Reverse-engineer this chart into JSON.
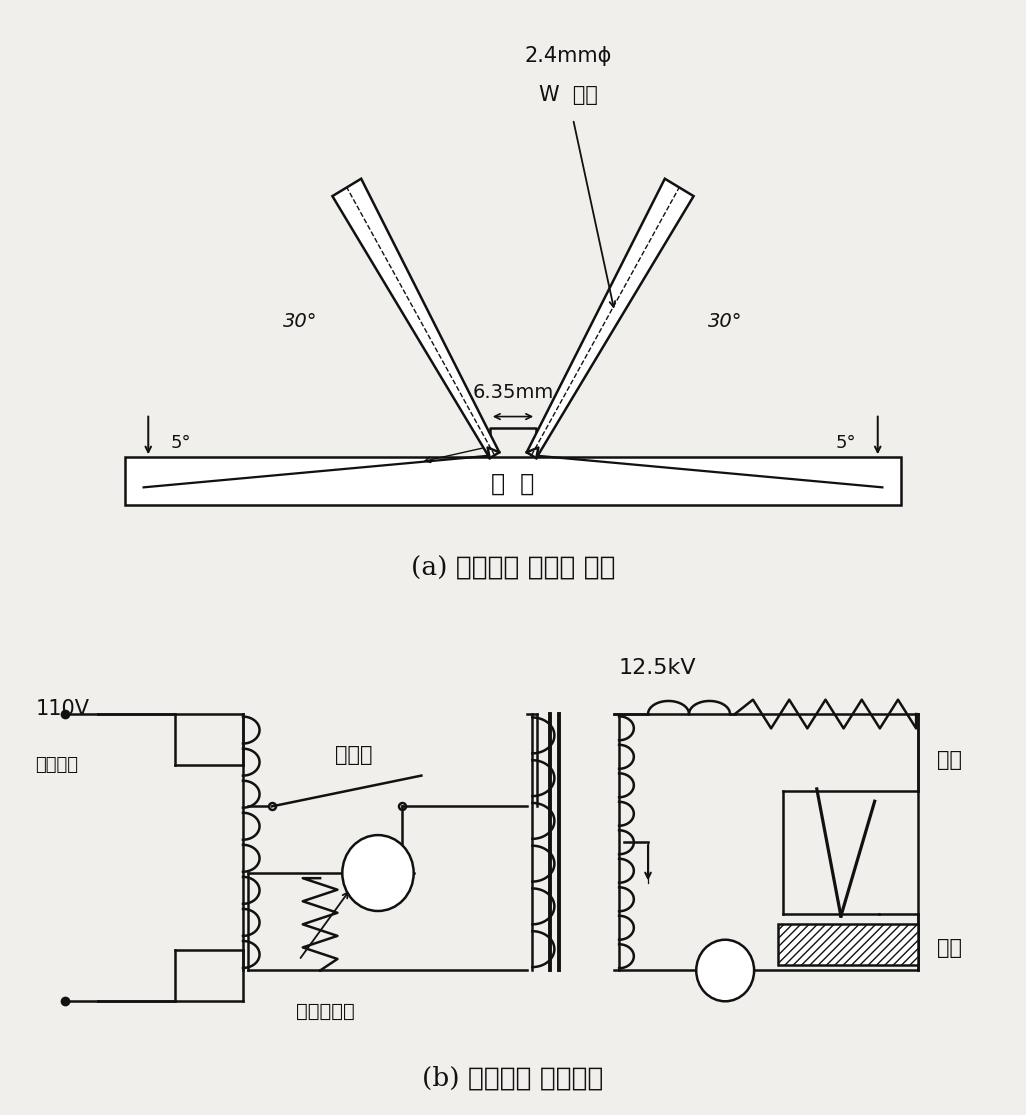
{
  "bg_color": "#f0efeb",
  "line_color": "#111111",
  "title_a": "(a) 내아크성 실험용 전극",
  "title_b": "(b) 내아크성 실험회로",
  "label_2_4mm": "2.4mmϕ",
  "label_W": "W  전극",
  "label_6_35mm": "6.35mm",
  "label_30_left": "30°",
  "label_30_right": "30°",
  "label_5_left": "5°",
  "label_5_right": "5°",
  "label_siryo_a": "시  료",
  "label_110V": "110V",
  "label_freq": "상용주파",
  "label_dansokg": "단속기",
  "label_12_5kV": "12.5kV",
  "label_jeonryu": "전류제한기",
  "label_jeongeuk": "전극",
  "label_siryo_b": "시료"
}
